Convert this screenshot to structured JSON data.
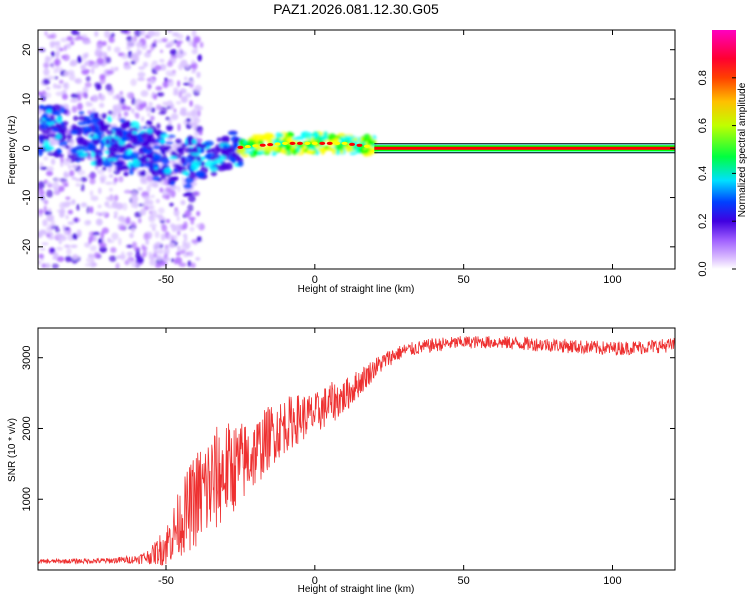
{
  "title": "PAZ1.2026.081.12.30.G05",
  "chart_data": [
    {
      "type": "heatmap",
      "xlabel": "Height of straight line (km)",
      "ylabel": "Frequency (Hz)",
      "xlim": [
        -93,
        121
      ],
      "ylim": [
        -24.5,
        24
      ],
      "xticks": [
        -50,
        0,
        50,
        100
      ],
      "xtick_labels": [
        "-50",
        "0",
        "50",
        "100"
      ],
      "yticks": [
        20,
        10,
        0,
        -10,
        -20
      ],
      "ytick_labels": [
        "20",
        "10",
        "0",
        "-10",
        "-20"
      ],
      "ridge": [
        {
          "x": -92,
          "y": 4
        },
        {
          "x": -80,
          "y": 2.5
        },
        {
          "x": -70,
          "y": 1.5
        },
        {
          "x": -60,
          "y": 0
        },
        {
          "x": -50,
          "y": -2
        },
        {
          "x": -42,
          "y": -3
        },
        {
          "x": -35,
          "y": -2
        },
        {
          "x": -28,
          "y": 0
        },
        {
          "x": -20,
          "y": 0.5
        },
        {
          "x": -10,
          "y": 1
        },
        {
          "x": 0,
          "y": 1
        },
        {
          "x": 10,
          "y": 1
        },
        {
          "x": 20,
          "y": 0.2
        },
        {
          "x": 121,
          "y": 0
        }
      ],
      "colorbar": {
        "label": "Normalized spectral amplitude",
        "range": [
          0,
          1
        ],
        "ticks": [
          0.0,
          0.2,
          0.4,
          0.6,
          0.8
        ],
        "tick_labels": [
          "0.0",
          "0.2",
          "0.4",
          "0.6",
          "0.8"
        ],
        "colors": [
          "#ffffff",
          "#b070ff",
          "#4000e0",
          "#0040ff",
          "#00ffff",
          "#00ff00",
          "#ffff00",
          "#ff8000",
          "#ff0000",
          "#ff00a0"
        ]
      }
    },
    {
      "type": "line",
      "xlabel": "Height of straight line (km)",
      "ylabel": "SNR (10 * v/v)",
      "xlim": [
        -93,
        121
      ],
      "ylim": [
        0,
        3420
      ],
      "xticks": [
        -50,
        0,
        50,
        100
      ],
      "xtick_labels": [
        "-50",
        "0",
        "50",
        "100"
      ],
      "yticks": [
        1000,
        2000,
        3000
      ],
      "ytick_labels": [
        "1000",
        "2000",
        "3000"
      ],
      "line_color": "#ee3030",
      "series": [
        {
          "name": "SNR",
          "x": [
            -93,
            -70,
            -60,
            -55,
            -50,
            -45,
            -40,
            -35,
            -30,
            -25,
            -20,
            -15,
            -10,
            -5,
            0,
            5,
            10,
            15,
            20,
            25,
            30,
            40,
            50,
            60,
            70,
            80,
            90,
            100,
            110,
            121
          ],
          "values": [
            120,
            130,
            150,
            200,
            350,
            700,
            1000,
            1200,
            1400,
            1500,
            1650,
            1900,
            2050,
            2150,
            2200,
            2350,
            2450,
            2650,
            2850,
            3000,
            3100,
            3180,
            3220,
            3220,
            3200,
            3180,
            3150,
            3130,
            3150,
            3180
          ],
          "noise": [
            30,
            40,
            60,
            120,
            300,
            500,
            700,
            800,
            700,
            600,
            500,
            450,
            400,
            350,
            300,
            300,
            250,
            200,
            150,
            120,
            100,
            100,
            90,
            90,
            100,
            100,
            100,
            100,
            100,
            100
          ]
        }
      ]
    }
  ]
}
